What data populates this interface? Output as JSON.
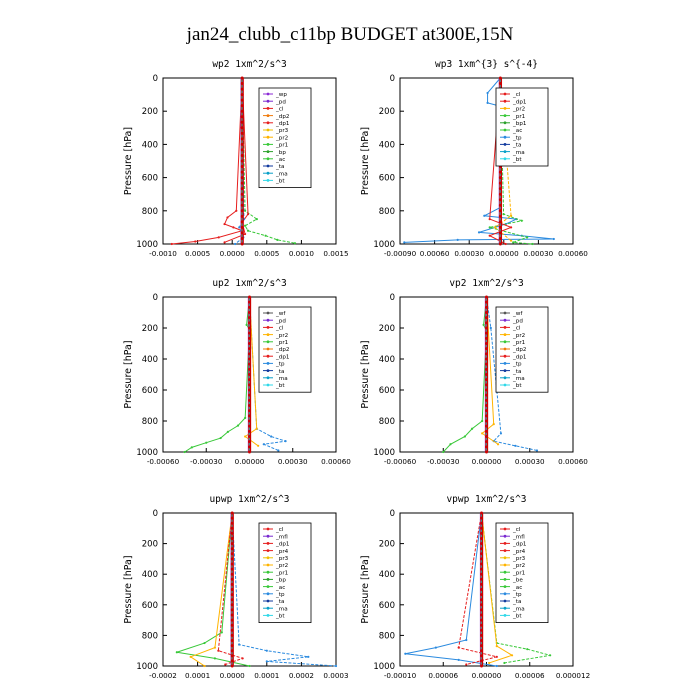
{
  "figure": {
    "title": "jan24_clubb_c11bp  BUDGET at300E,15N"
  },
  "palette": {
    "_wp": "#8c2bd6",
    "_pd": "#7a2ad0",
    "_cl": "#e61e1e",
    "_dp2": "#f07a0a",
    "_dp1": "#e61e1e",
    "_pr3": "#f0c000",
    "_pr2": "#ffb400",
    "_pr1": "#38c838",
    "_bp": "#2aa02a",
    "_ac": "#38c838",
    "_tp": "#2a8adf",
    "_ta": "#123a9e",
    "_ma": "#0aa0c8",
    "_bt": "#30d8e8",
    "_mfl": "#7a2ad0",
    "_pr4": "#e61e1e",
    "_bp1": "#2aa02a",
    "_be": "#38c838",
    "profile": "#cc0000"
  },
  "chart_data": [
    {
      "type": "line",
      "title": "wp2   1xm^2/s^3",
      "ylabel": "Pressure [hPa]",
      "xlim": [
        -0.00135,
        0.0016
      ],
      "ylim": [
        1000,
        0
      ],
      "xticks": [
        "-0.0010",
        "0.0005",
        "0.0000",
        "0.0005",
        "0.0010",
        "0.0015"
      ],
      "yticks": [
        "0",
        "200",
        "400",
        "600",
        "800",
        "1000"
      ],
      "legend": [
        "_wp",
        "_pd",
        "_cl",
        "_dp2",
        "_dp1",
        "_pr3",
        "_pr2",
        "_pr1",
        "_bp",
        "_ac",
        "_ta",
        "_ma",
        "_bt"
      ],
      "series": [
        {
          "name": "_cl",
          "x": [
            0,
            -0.0001,
            -0.00025,
            -0.0003,
            -0.00015,
            0,
            -0.0004,
            -0.0008,
            -0.0012
          ],
          "y": [
            0,
            800,
            840,
            880,
            900,
            920,
            960,
            985,
            1000
          ]
        },
        {
          "name": "_ac",
          "x": [
            0,
            5e-05,
            0.00025,
            5e-05,
            0.0001,
            0.0004,
            0.0006,
            0.0009
          ],
          "y": [
            0,
            800,
            850,
            890,
            920,
            950,
            975,
            995
          ]
        },
        {
          "name": "_dp1",
          "x": [
            0,
            0.0001,
            0,
            5e-05,
            -0.0003
          ],
          "y": [
            0,
            820,
            870,
            940,
            990
          ]
        },
        {
          "name": "_tp",
          "x": [
            0,
            3e-05,
            -5e-05,
            2e-05,
            -0.00012
          ],
          "y": [
            0,
            850,
            900,
            960,
            1000
          ]
        }
      ]
    },
    {
      "type": "line",
      "title": "wp3   1xm^{3} s^{-4}",
      "ylabel": "Pressure [hPa]",
      "xlim": [
        -0.00094,
        0.00068
      ],
      "ylim": [
        1000,
        0
      ],
      "xticks": [
        "-0.00090",
        "0.00060",
        "0.00030",
        "0.00000",
        "0.00030",
        "0.00060"
      ],
      "yticks": [
        "0",
        "200",
        "400",
        "600",
        "800",
        "1000"
      ],
      "legend": [
        "_cl",
        "_dp1",
        "_pr2",
        "_pr1",
        "_bp1",
        "_ac",
        "_tp",
        "_ta",
        "_ma",
        "_bt"
      ],
      "series": [
        {
          "name": "_tp",
          "x": [
            0,
            -0.00012,
            -0.00012,
            0,
            0,
            -0.00015,
            0.00015,
            5e-05,
            -0.0002,
            0.0002,
            0.0005,
            -0.0004,
            -0.0009
          ],
          "y": [
            0,
            90,
            150,
            170,
            780,
            830,
            850,
            880,
            930,
            950,
            970,
            975,
            990
          ]
        },
        {
          "name": "_ac",
          "x": [
            0,
            3e-05,
            0.0002,
            -0.0001,
            0.00025,
            0.00012,
            0.0003
          ],
          "y": [
            0,
            820,
            860,
            900,
            960,
            990,
            1000
          ]
        },
        {
          "name": "_cl",
          "x": [
            0,
            -0.0001,
            0.0001,
            -0.0001,
            5e-05
          ],
          "y": [
            0,
            850,
            900,
            950,
            1000
          ]
        },
        {
          "name": "_pr2",
          "x": [
            0,
            0.0001,
            -5e-05,
            0.0001
          ],
          "y": [
            0,
            830,
            900,
            980
          ]
        }
      ]
    },
    {
      "type": "line",
      "title": "up2   1xm^2/s^3",
      "ylabel": "Pressure [hPa]",
      "xlim": [
        -0.0006,
        0.0006
      ],
      "ylim": [
        1000,
        0
      ],
      "xticks": [
        "-0.00060",
        "-0.00030",
        "0.00000",
        "0.00030",
        "0.00060"
      ],
      "yticks": [
        "0",
        "200",
        "400",
        "600",
        "800",
        "1000"
      ],
      "legend": [
        "_wf",
        "_pd",
        "_cl",
        "_pr2",
        "_pr1",
        "_dp2",
        "_dp1",
        "_tp",
        "_ta",
        "_ma",
        "_bt"
      ],
      "series": [
        {
          "name": "_ac",
          "x": [
            0,
            -2e-05,
            0,
            -3e-05,
            -8e-05,
            -0.00015,
            -0.0002,
            -0.0003,
            -0.0004,
            -0.00045
          ],
          "y": [
            0,
            180,
            210,
            780,
            830,
            870,
            910,
            940,
            970,
            1000
          ]
        },
        {
          "name": "_tp",
          "x": [
            0,
            5e-05,
            0.00015,
            0.00025,
            0.0001,
            0.0002
          ],
          "y": [
            0,
            850,
            900,
            930,
            950,
            990
          ]
        },
        {
          "name": "_pr2",
          "x": [
            0,
            5e-05,
            -3e-05,
            6e-05
          ],
          "y": [
            0,
            850,
            900,
            960
          ]
        }
      ]
    },
    {
      "type": "line",
      "title": "vp2   1xm^2/s^3",
      "ylabel": "Pressure [hPa]",
      "xlim": [
        -0.0006,
        0.0006
      ],
      "ylim": [
        1000,
        0
      ],
      "xticks": [
        "-0.00060",
        "-0.00030",
        "0.00000",
        "0.00030",
        "0.00060"
      ],
      "yticks": [
        "0",
        "200",
        "400",
        "600",
        "800",
        "1000"
      ],
      "legend": [
        "_wf",
        "_pd",
        "_cl",
        "_pr2",
        "_pr1",
        "_dp2",
        "_dp1",
        "_tp",
        "_ta",
        "_ma",
        "_bt"
      ],
      "series": [
        {
          "name": "_ac",
          "x": [
            0,
            -2e-05,
            0,
            -3e-05,
            -0.0001,
            -0.00015,
            -0.00025,
            -0.0003
          ],
          "y": [
            0,
            180,
            220,
            800,
            850,
            900,
            950,
            1000
          ]
        },
        {
          "name": "_tp",
          "x": [
            0,
            3e-05,
            0.0001,
            5e-05,
            0.0002,
            0.00035
          ],
          "y": [
            0,
            200,
            880,
            930,
            960,
            990
          ]
        },
        {
          "name": "_pr2",
          "x": [
            0,
            5e-05,
            -3e-05,
            8e-05
          ],
          "y": [
            0,
            820,
            880,
            950
          ]
        }
      ]
    },
    {
      "type": "line",
      "title": "upwp   1xm^2/s^3",
      "ylabel": "Pressure [hPa]",
      "xlim": [
        -0.0002,
        0.0003
      ],
      "ylim": [
        1000,
        0
      ],
      "xticks": [
        "-0.0002",
        "0.0001",
        "0.0000",
        "0.0001",
        "0.0002",
        "0.0003"
      ],
      "yticks": [
        "0",
        "200",
        "400",
        "600",
        "800",
        "1000"
      ],
      "legend": [
        "_cl",
        "_mfl",
        "_dp1",
        "_pr4",
        "_pr3",
        "_pr2",
        "_pr1",
        "_bp",
        "_ac",
        "_tp",
        "_ta",
        "_ma",
        "_bt"
      ],
      "series": [
        {
          "name": "_ac",
          "x": [
            0,
            -3e-05,
            -8e-05,
            -0.00016,
            -5e-05,
            5e-05
          ],
          "y": [
            0,
            780,
            850,
            910,
            950,
            1000
          ]
        },
        {
          "name": "_tp",
          "x": [
            0,
            2e-05,
            0.0001,
            0.00022,
            0.0001,
            0.0003
          ],
          "y": [
            0,
            860,
            900,
            940,
            970,
            1000
          ]
        },
        {
          "name": "_pr2",
          "x": [
            0,
            -5e-05,
            -0.00012,
            -8e-05
          ],
          "y": [
            0,
            880,
            940,
            1000
          ]
        },
        {
          "name": "_cl",
          "x": [
            0,
            -4e-05,
            3e-05,
            -2e-05
          ],
          "y": [
            0,
            900,
            950,
            990
          ]
        }
      ]
    },
    {
      "type": "line",
      "title": "vpwp   1xm^2/s^3",
      "ylabel": "Pressure [hPa]",
      "xlim": [
        -0.000107,
        0.00012
      ],
      "ylim": [
        1000,
        0
      ],
      "xticks": [
        "-0.00010",
        "0.00006",
        "0.00000",
        "0.00006",
        "0.000012"
      ],
      "yticks": [
        "0",
        "200",
        "400",
        "600",
        "800",
        "1000"
      ],
      "legend": [
        "_cl",
        "_mfl",
        "_dp1",
        "_pr4",
        "_pr3",
        "_pr2",
        "_pr1",
        "_be",
        "_ac",
        "_tp",
        "_ta",
        "_ma",
        "_bt"
      ],
      "series": [
        {
          "name": "_tp",
          "x": [
            0,
            -2e-05,
            -6e-05,
            -0.0001,
            -3e-05,
            2e-05
          ],
          "y": [
            0,
            830,
            880,
            920,
            960,
            1000
          ]
        },
        {
          "name": "_ac",
          "x": [
            0,
            2e-05,
            6e-05,
            9e-05,
            3e-05
          ],
          "y": [
            0,
            850,
            890,
            930,
            980
          ]
        },
        {
          "name": "_pr2",
          "x": [
            0,
            2e-05,
            4e-05,
            1e-05
          ],
          "y": [
            0,
            870,
            930,
            980
          ]
        },
        {
          "name": "_cl",
          "x": [
            0,
            -3e-05,
            2e-05,
            -2e-05
          ],
          "y": [
            0,
            880,
            940,
            990
          ]
        }
      ]
    }
  ]
}
